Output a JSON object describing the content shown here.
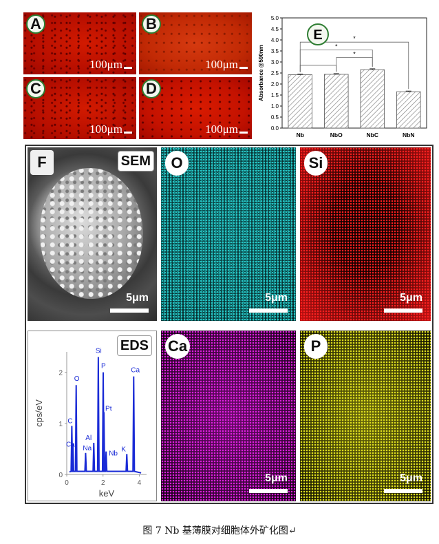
{
  "panels": [
    {
      "label": "A",
      "scale": "100μm"
    },
    {
      "label": "B",
      "scale": "100μm"
    },
    {
      "label": "C",
      "scale": "100μm"
    },
    {
      "label": "D",
      "scale": "100μm"
    }
  ],
  "chart_data": {
    "type": "bar",
    "panel_label": "E",
    "categories": [
      "Nb",
      "NbO",
      "NbC",
      "NbN"
    ],
    "values": [
      2.42,
      2.44,
      2.65,
      1.65
    ],
    "errors": [
      0.03,
      0.03,
      0.04,
      0.03
    ],
    "ylabel": "Absorbance @590nm",
    "ylim": [
      0,
      5.0
    ],
    "yticks": [
      "0.0",
      "0.5",
      "1.0",
      "1.5",
      "2.0",
      "2.5",
      "3.0",
      "3.5",
      "4.0",
      "4.5",
      "5.0"
    ],
    "significance": [
      {
        "from": "Nb",
        "to": "NbO",
        "mark": ""
      },
      {
        "from": "Nb",
        "to": "NbC",
        "mark": "*"
      },
      {
        "from": "NbO",
        "to": "NbC",
        "mark": "*"
      },
      {
        "from": "Nb",
        "to": "NbN",
        "mark": "*"
      }
    ],
    "fill_pattern": "hatched"
  },
  "figure_f": {
    "label": "F",
    "sem_tag": "SEM",
    "eds_tag": "EDS",
    "scale": "5μm",
    "maps": [
      {
        "element": "O",
        "color": "#28c8c8"
      },
      {
        "element": "Si",
        "color": "#ff2020"
      },
      {
        "element": "Ca",
        "color": "#e020e0"
      },
      {
        "element": "P",
        "color": "#e0e020"
      }
    ],
    "spectrum": {
      "ylabel": "cps/eV",
      "xlabel": "keV",
      "yticks": [
        "0",
        "1",
        "2"
      ],
      "xticks": [
        "0",
        "2",
        "4"
      ],
      "peaks": [
        {
          "label": "C",
          "kev": 0.28,
          "height": 0.95
        },
        {
          "label": "O",
          "kev": 0.52,
          "height": 1.75
        },
        {
          "label": "Ca",
          "kev": 0.34,
          "height": 0.6
        },
        {
          "label": "Na",
          "kev": 1.04,
          "height": 0.42
        },
        {
          "label": "Al",
          "kev": 1.49,
          "height": 0.62
        },
        {
          "label": "Si",
          "kev": 1.74,
          "height": 2.3
        },
        {
          "label": "P",
          "kev": 2.01,
          "height": 2.0
        },
        {
          "label": "Pt",
          "kev": 2.05,
          "height": 1.22
        },
        {
          "label": "Nb",
          "kev": 2.17,
          "height": 0.45
        },
        {
          "label": "K",
          "kev": 3.31,
          "height": 0.4
        },
        {
          "label": "Ca",
          "kev": 3.69,
          "height": 1.92
        }
      ],
      "line_color": "#1a2bd6"
    }
  },
  "caption": "图 7 Nb 基薄膜对细胞体外矿化图↵"
}
